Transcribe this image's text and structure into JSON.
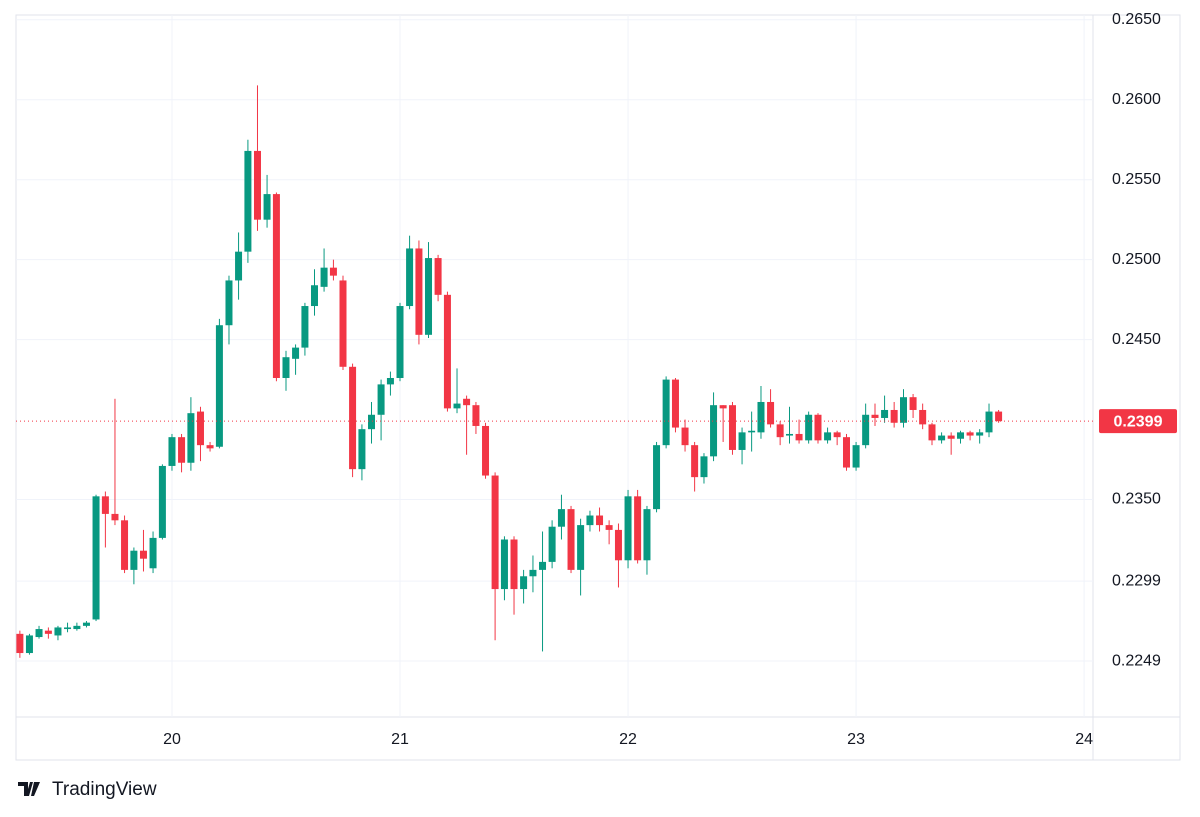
{
  "chart_data": {
    "type": "candlestick",
    "brand": "TradingView",
    "up_color": "#089981",
    "down_color": "#f23645",
    "last_price": 0.2399,
    "xlim": [
      19.316,
      24.039
    ],
    "xticks": [
      20,
      21,
      22,
      23,
      24
    ],
    "ylim": [
      0.2214,
      0.2653
    ],
    "yticks": [
      {
        "value": 0.265,
        "label": "0.2650"
      },
      {
        "value": 0.26,
        "label": "0.2600"
      },
      {
        "value": 0.255,
        "label": "0.2550"
      },
      {
        "value": 0.25,
        "label": "0.2500"
      },
      {
        "value": 0.245,
        "label": "0.2450"
      },
      {
        "value": 0.235,
        "label": "0.2350"
      },
      0.2299,
      0.2249
    ],
    "grid": true,
    "x": [
      19.333,
      19.375,
      19.417,
      19.458,
      19.5,
      19.542,
      19.583,
      19.625,
      19.667,
      19.708,
      19.75,
      19.792,
      19.833,
      19.875,
      19.917,
      19.958,
      20,
      20.042,
      20.083,
      20.125,
      20.167,
      20.208,
      20.25,
      20.292,
      20.333,
      20.375,
      20.417,
      20.458,
      20.5,
      20.542,
      20.583,
      20.625,
      20.667,
      20.708,
      20.75,
      20.792,
      20.833,
      20.875,
      20.917,
      20.958,
      21,
      21.042,
      21.083,
      21.125,
      21.167,
      21.208,
      21.25,
      21.292,
      21.333,
      21.375,
      21.417,
      21.458,
      21.5,
      21.542,
      21.583,
      21.625,
      21.667,
      21.708,
      21.75,
      21.792,
      21.833,
      21.875,
      21.917,
      21.958,
      22,
      22.042,
      22.083,
      22.125,
      22.167,
      22.208,
      22.25,
      22.292,
      22.333,
      22.375,
      22.417,
      22.458,
      22.5,
      22.542,
      22.583,
      22.625,
      22.667,
      22.708,
      22.75,
      22.792,
      22.833,
      22.875,
      22.917,
      22.958,
      23,
      23.042,
      23.083,
      23.125,
      23.167,
      23.208,
      23.25,
      23.292,
      23.333,
      23.375,
      23.417,
      23.458,
      23.5,
      23.542,
      23.583,
      23.625
    ],
    "open": [
      0.2266,
      0.2254,
      0.2264,
      0.2268,
      0.2265,
      0.2269,
      0.2269,
      0.2271,
      0.2275,
      0.2352,
      0.2341,
      0.2337,
      0.2306,
      0.2318,
      0.2307,
      0.2326,
      0.2371,
      0.2389,
      0.2373,
      0.2405,
      0.2384,
      0.2383,
      0.2459,
      0.2487,
      0.2505,
      0.2568,
      0.2525,
      0.2541,
      0.2426,
      0.2438,
      0.2445,
      0.2471,
      0.2483,
      0.2495,
      0.2487,
      0.2433,
      0.2369,
      0.2394,
      0.2403,
      0.2422,
      0.2426,
      0.2471,
      0.2507,
      0.2453,
      0.2501,
      0.2478,
      0.2407,
      0.2413,
      0.2409,
      0.2396,
      0.2365,
      0.2294,
      0.2325,
      0.2294,
      0.2302,
      0.2306,
      0.2311,
      0.2333,
      0.2344,
      0.2306,
      0.2334,
      0.234,
      0.2334,
      0.2331,
      0.2312,
      0.2352,
      0.2312,
      0.2344,
      0.2384,
      0.2425,
      0.2395,
      0.2384,
      0.2364,
      0.2377,
      0.2409,
      0.2409,
      0.2381,
      0.2392,
      0.2392,
      0.2411,
      0.2397,
      0.239,
      0.2391,
      0.2387,
      0.2403,
      0.2387,
      0.2392,
      0.2389,
      0.237,
      0.2384,
      0.2403,
      0.2401,
      0.2406,
      0.2398,
      0.2414,
      0.2406,
      0.2397,
      0.2387,
      0.239,
      0.2388,
      0.2392,
      0.239,
      0.2392,
      0.2405
    ],
    "high": [
      0.2268,
      0.2266,
      0.2271,
      0.227,
      0.2271,
      0.2273,
      0.2273,
      0.2274,
      0.2353,
      0.2355,
      0.2413,
      0.234,
      0.232,
      0.2331,
      0.233,
      0.2372,
      0.2391,
      0.2391,
      0.2414,
      0.2408,
      0.2386,
      0.2463,
      0.249,
      0.2517,
      0.2575,
      0.2609,
      0.2553,
      0.2542,
      0.2443,
      0.2447,
      0.2473,
      0.2494,
      0.2507,
      0.25,
      0.249,
      0.2435,
      0.2397,
      0.2411,
      0.2425,
      0.243,
      0.2473,
      0.2515,
      0.2512,
      0.2511,
      0.2503,
      0.248,
      0.2432,
      0.2415,
      0.2411,
      0.2398,
      0.2367,
      0.2327,
      0.2327,
      0.2306,
      0.2315,
      0.233,
      0.2337,
      0.2353,
      0.2346,
      0.2338,
      0.2343,
      0.2345,
      0.2337,
      0.2335,
      0.2356,
      0.2356,
      0.2346,
      0.2386,
      0.2427,
      0.2426,
      0.24,
      0.2386,
      0.2379,
      0.2417,
      0.2409,
      0.2411,
      0.2395,
      0.2405,
      0.2421,
      0.2419,
      0.2399,
      0.2408,
      0.24,
      0.2405,
      0.2404,
      0.2395,
      0.2393,
      0.2391,
      0.2386,
      0.241,
      0.241,
      0.2415,
      0.2411,
      0.2419,
      0.2416,
      0.241,
      0.2398,
      0.2392,
      0.2392,
      0.2393,
      0.2393,
      0.2394,
      0.241,
      0.2406
    ],
    "low": [
      0.2251,
      0.2253,
      0.2263,
      0.2263,
      0.2262,
      0.2267,
      0.2268,
      0.227,
      0.2274,
      0.232,
      0.2334,
      0.2304,
      0.2297,
      0.2305,
      0.2304,
      0.2325,
      0.2368,
      0.2367,
      0.2368,
      0.2374,
      0.238,
      0.2382,
      0.2447,
      0.2475,
      0.2498,
      0.2518,
      0.252,
      0.2424,
      0.2418,
      0.2428,
      0.244,
      0.2465,
      0.248,
      0.2487,
      0.2431,
      0.2364,
      0.2362,
      0.2385,
      0.2387,
      0.2415,
      0.2424,
      0.2469,
      0.2447,
      0.2451,
      0.2474,
      0.2405,
      0.2404,
      0.2378,
      0.2391,
      0.2363,
      0.2262,
      0.2287,
      0.2278,
      0.2285,
      0.2292,
      0.2255,
      0.2307,
      0.2325,
      0.2304,
      0.229,
      0.233,
      0.233,
      0.2322,
      0.2295,
      0.2307,
      0.231,
      0.2303,
      0.2342,
      0.2382,
      0.2392,
      0.238,
      0.2355,
      0.236,
      0.2374,
      0.2386,
      0.2378,
      0.2372,
      0.238,
      0.2388,
      0.2395,
      0.2384,
      0.2385,
      0.2385,
      0.2385,
      0.2385,
      0.2385,
      0.2384,
      0.2368,
      0.2368,
      0.2382,
      0.2396,
      0.2398,
      0.2395,
      0.2395,
      0.2401,
      0.2394,
      0.2384,
      0.2385,
      0.2378,
      0.2385,
      0.2387,
      0.2385,
      0.2389,
      0.2398
    ],
    "close": [
      0.2254,
      0.2265,
      0.2269,
      0.2266,
      0.227,
      0.227,
      0.2271,
      0.2273,
      0.2352,
      0.2341,
      0.2337,
      0.2306,
      0.2318,
      0.2313,
      0.2326,
      0.2371,
      0.2389,
      0.2373,
      0.2404,
      0.2384,
      0.2382,
      0.2459,
      0.2487,
      0.2505,
      0.2568,
      0.2525,
      0.2541,
      0.2426,
      0.2439,
      0.2445,
      0.2471,
      0.2484,
      0.2495,
      0.249,
      0.2433,
      0.2369,
      0.2394,
      0.2403,
      0.2422,
      0.2426,
      0.2471,
      0.2507,
      0.2453,
      0.2501,
      0.2478,
      0.2407,
      0.241,
      0.2409,
      0.2396,
      0.2365,
      0.2294,
      0.2325,
      0.2294,
      0.2302,
      0.2306,
      0.2311,
      0.2333,
      0.2344,
      0.2306,
      0.2334,
      0.234,
      0.2334,
      0.2331,
      0.2312,
      0.2352,
      0.2312,
      0.2344,
      0.2384,
      0.2425,
      0.2395,
      0.2384,
      0.2364,
      0.2377,
      0.2409,
      0.2407,
      0.2381,
      0.2392,
      0.2393,
      0.2411,
      0.2397,
      0.2389,
      0.2391,
      0.2387,
      0.2403,
      0.2387,
      0.2392,
      0.2389,
      0.237,
      0.2384,
      0.2403,
      0.2401,
      0.2406,
      0.2398,
      0.2414,
      0.2406,
      0.2397,
      0.2387,
      0.239,
      0.2388,
      0.2392,
      0.239,
      0.2392,
      0.2405,
      0.2399
    ]
  }
}
